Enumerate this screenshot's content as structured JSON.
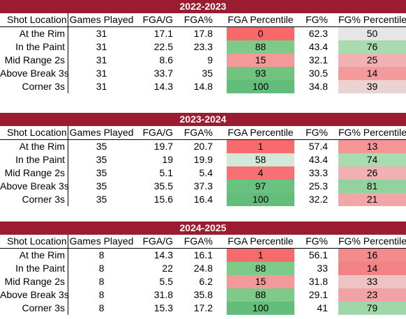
{
  "columns": [
    "Shot Location",
    "Games Played",
    "FGA/G",
    "FGA%",
    "FGA Percentile",
    "FG%",
    "FG% Percentile"
  ],
  "sections": [
    {
      "title": "2022-2023",
      "rows": [
        {
          "loc": "At the Rim",
          "gp": "31",
          "fgag": "17.1",
          "fgap": "17.8",
          "fgapct": "0",
          "fg": "62.3",
          "fgpct": "50",
          "fgapct_color": "#f8696b",
          "fgpct_color": "#e6e6e6"
        },
        {
          "loc": "In the Paint",
          "gp": "31",
          "fgag": "22.5",
          "fgap": "23.3",
          "fgapct": "88",
          "fg": "43.4",
          "fgpct": "76",
          "fgapct_color": "#7ecb89",
          "fgpct_color": "#a8dbb0"
        },
        {
          "loc": "Mid Range 2s",
          "gp": "31",
          "fgag": "8.6",
          "fgap": "9",
          "fgapct": "15",
          "fg": "32.1",
          "fgpct": "25",
          "fgapct_color": "#f4999a",
          "fgpct_color": "#f1b2b3"
        },
        {
          "loc": "Above Break 3s",
          "gp": "31",
          "fgag": "33.7",
          "fgap": "35",
          "fgapct": "93",
          "fg": "30.5",
          "fgpct": "14",
          "fgapct_color": "#70c47e",
          "fgpct_color": "#f49a9c"
        },
        {
          "loc": "Corner 3s",
          "gp": "31",
          "fgag": "14.3",
          "fgap": "14.8",
          "fgapct": "100",
          "fg": "34.8",
          "fgpct": "39",
          "fgapct_color": "#63be7b",
          "fgpct_color": "#ebd3d4"
        }
      ]
    },
    {
      "title": "2023-2024",
      "rows": [
        {
          "loc": "At the Rim",
          "gp": "35",
          "fgag": "19.7",
          "fgap": "20.7",
          "fgapct": "1",
          "fg": "57.4",
          "fgpct": "13",
          "fgapct_color": "#f86b6d",
          "fgpct_color": "#f49596"
        },
        {
          "loc": "In the Paint",
          "gp": "35",
          "fgag": "19",
          "fgap": "19.9",
          "fgapct": "58",
          "fg": "43.4",
          "fgpct": "74",
          "fgapct_color": "#d3e8d6",
          "fgpct_color": "#a9dbb1"
        },
        {
          "loc": "Mid Range 2s",
          "gp": "35",
          "fgag": "5.1",
          "fgap": "5.4",
          "fgapct": "4",
          "fg": "33.3",
          "fgpct": "26",
          "fgapct_color": "#f77073",
          "fgpct_color": "#f1b1b2"
        },
        {
          "loc": "Above Break 3s",
          "gp": "35",
          "fgag": "35.5",
          "fgap": "37.3",
          "fgapct": "97",
          "fg": "25.3",
          "fgpct": "81",
          "fgapct_color": "#6ac280",
          "fgpct_color": "#93d29e"
        },
        {
          "loc": "Corner 3s",
          "gp": "35",
          "fgag": "15.6",
          "fgap": "16.4",
          "fgapct": "100",
          "fg": "32.2",
          "fgpct": "21",
          "fgapct_color": "#63be7b",
          "fgpct_color": "#f2a6a8"
        }
      ]
    },
    {
      "title": "2024-2025",
      "rows": [
        {
          "loc": "At the Rim",
          "gp": "8",
          "fgag": "14.3",
          "fgap": "16.1",
          "fgapct": "1",
          "fg": "56.1",
          "fgpct": "16",
          "fgapct_color": "#f86b6d",
          "fgpct_color": "#f38a8c"
        },
        {
          "loc": "In the Paint",
          "gp": "8",
          "fgag": "22",
          "fgap": "24.8",
          "fgapct": "88",
          "fg": "33",
          "fgpct": "14",
          "fgapct_color": "#7ecb89",
          "fgpct_color": "#f38284"
        },
        {
          "loc": "Mid Range 2s",
          "gp": "8",
          "fgag": "5.5",
          "fgap": "6.2",
          "fgapct": "15",
          "fg": "31.8",
          "fgpct": "33",
          "fgapct_color": "#f4999a",
          "fgpct_color": "#efc3c4"
        },
        {
          "loc": "Above Break 3s",
          "gp": "8",
          "fgag": "31.8",
          "fgap": "35.8",
          "fgapct": "88",
          "fg": "29.1",
          "fgpct": "23",
          "fgapct_color": "#7ecb89",
          "fgpct_color": "#f1a2a4"
        },
        {
          "loc": "Corner 3s",
          "gp": "8",
          "fgag": "15.3",
          "fgap": "17.2",
          "fgapct": "100",
          "fg": "41",
          "fgpct": "79",
          "fgapct_color": "#63be7b",
          "fgpct_color": "#9fd7a9"
        }
      ]
    }
  ]
}
